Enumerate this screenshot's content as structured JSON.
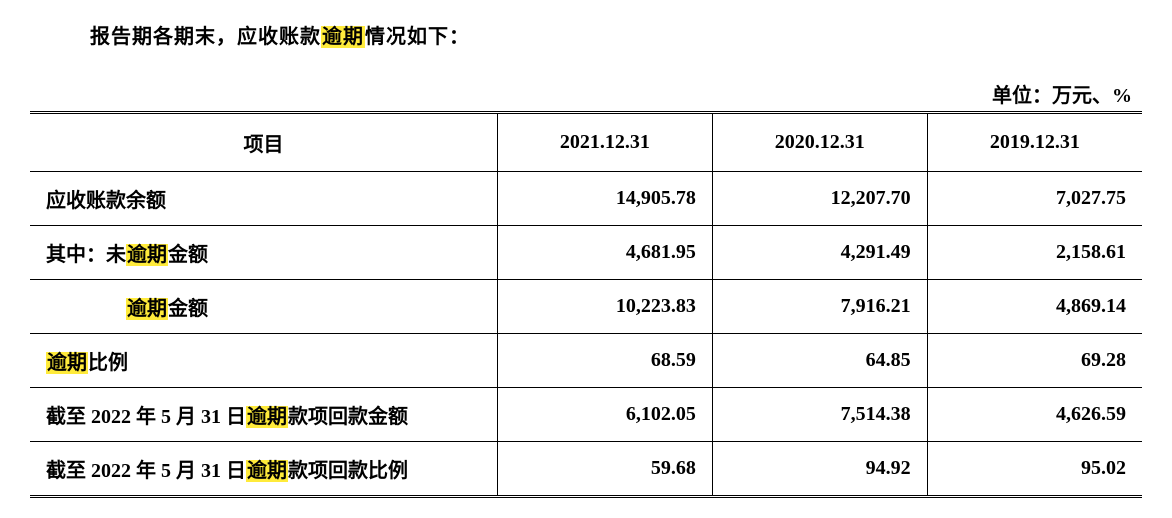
{
  "intro": {
    "pre": "报告期各期末，应收账款",
    "highlight": "逾期",
    "post": "情况如下："
  },
  "unit_label": "单位：万元、%",
  "table": {
    "background_color": "#ffffff",
    "text_color": "#000000",
    "highlight_color": "#ffeb3b",
    "border_color": "#000000",
    "font_size": 20,
    "font_weight": "bold",
    "columns": [
      "项目",
      "2021.12.31",
      "2020.12.31",
      "2019.12.31"
    ],
    "column_widths": [
      "42%",
      "19.3%",
      "19.3%",
      "19.3%"
    ],
    "rows": [
      {
        "label_parts": [
          {
            "text": "应收账款余额",
            "hl": false
          }
        ],
        "indent": 0,
        "values": [
          "14,905.78",
          "12,207.70",
          "7,027.75"
        ]
      },
      {
        "label_parts": [
          {
            "text": "其中：未",
            "hl": false
          },
          {
            "text": "逾期",
            "hl": true
          },
          {
            "text": "金额",
            "hl": false
          }
        ],
        "indent": 0,
        "values": [
          "4,681.95",
          "4,291.49",
          "2,158.61"
        ]
      },
      {
        "label_parts": [
          {
            "text": "逾期",
            "hl": true
          },
          {
            "text": "金额",
            "hl": false
          }
        ],
        "indent": 2,
        "values": [
          "10,223.83",
          "7,916.21",
          "4,869.14"
        ]
      },
      {
        "label_parts": [
          {
            "text": "逾期",
            "hl": true
          },
          {
            "text": "比例",
            "hl": false
          }
        ],
        "indent": 0,
        "values": [
          "68.59",
          "64.85",
          "69.28"
        ]
      },
      {
        "label_parts": [
          {
            "text": "截至 2022 年 5 月 31 日",
            "hl": false
          },
          {
            "text": "逾期",
            "hl": true
          },
          {
            "text": "款项回款金额",
            "hl": false
          }
        ],
        "indent": 0,
        "values": [
          "6,102.05",
          "7,514.38",
          "4,626.59"
        ]
      },
      {
        "label_parts": [
          {
            "text": "截至 2022 年 5 月 31 日",
            "hl": false
          },
          {
            "text": "逾期",
            "hl": true
          },
          {
            "text": "款项回款比例",
            "hl": false
          }
        ],
        "indent": 0,
        "values": [
          "59.68",
          "94.92",
          "95.02"
        ]
      }
    ]
  }
}
